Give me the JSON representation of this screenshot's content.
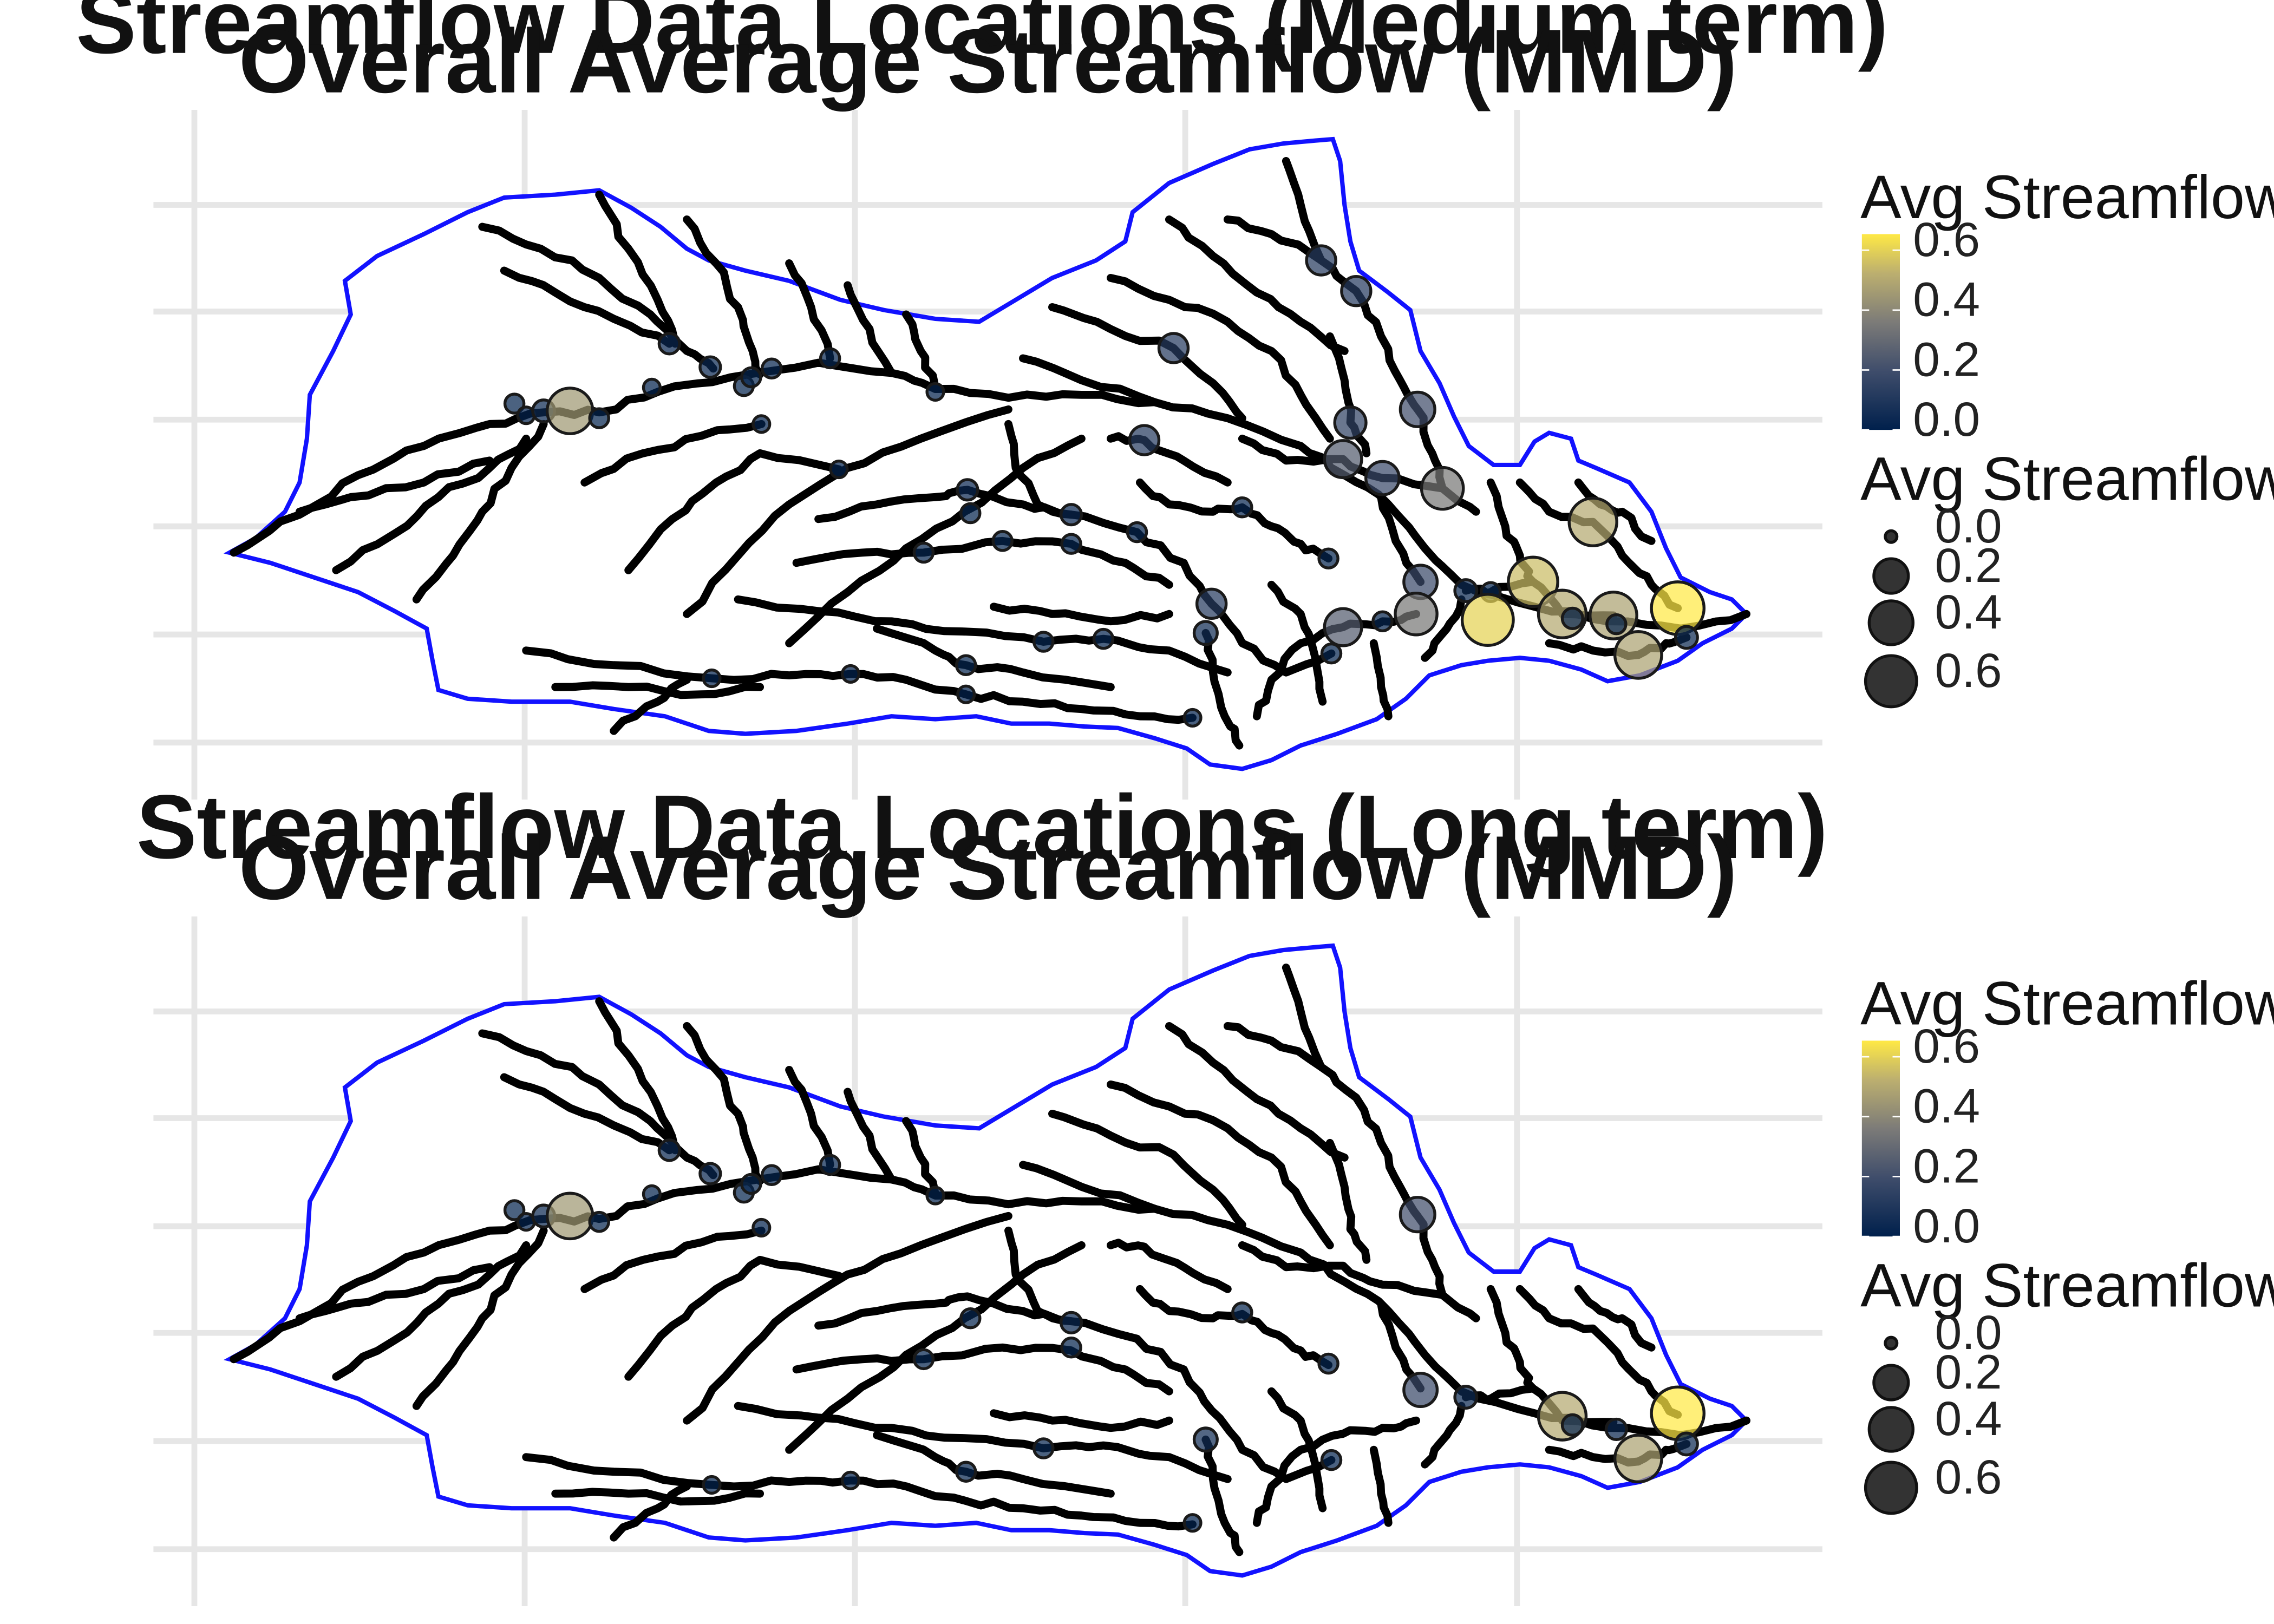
{
  "panels": [
    {
      "id": "medium",
      "title_line1": "Streamflow Data Locations (Medium term)",
      "title_line2": "Overall Average Streamflow (MMD)",
      "legend_color_title": "Avg Streamflow (_MMD)",
      "legend_color_ticks": [
        "0.0",
        "0.2",
        "0.4",
        "0.6"
      ],
      "legend_size_title": "Avg Streamflow (_MMD)",
      "legend_size_ticks": [
        "0.0",
        "0.2",
        "0.4",
        "0.6"
      ],
      "stations": [
        [
          352,
          276,
          0.02
        ],
        [
          360,
          284,
          0.01
        ],
        [
          372,
          281,
          0.04
        ],
        [
          390,
          281,
          0.45
        ],
        [
          410,
          286,
          0.02
        ],
        [
          458,
          235,
          0.03
        ],
        [
          446,
          265,
          0.01
        ],
        [
          486,
          251,
          0.03
        ],
        [
          509,
          264,
          0.02
        ],
        [
          514,
          258,
          0.02
        ],
        [
          528,
          252,
          0.02
        ],
        [
          521,
          290,
          0.01
        ],
        [
          568,
          245,
          0.02
        ],
        [
          574,
          321,
          0.01
        ],
        [
          640,
          268,
          0.01
        ],
        [
          904,
          178,
          0.12
        ],
        [
          928,
          199,
          0.12
        ],
        [
          803,
          238,
          0.12
        ],
        [
          970,
          280,
          0.2
        ],
        [
          924,
          289,
          0.15
        ],
        [
          783,
          301,
          0.12
        ],
        [
          919,
          314,
          0.25
        ],
        [
          946,
          327,
          0.18
        ],
        [
          987,
          334,
          0.35
        ],
        [
          662,
          335,
          0.03
        ],
        [
          664,
          351,
          0.02
        ],
        [
          733,
          352,
          0.03
        ],
        [
          850,
          347,
          0.02
        ],
        [
          778,
          364,
          0.02
        ],
        [
          733,
          372,
          0.02
        ],
        [
          686,
          370,
          0.02
        ],
        [
          632,
          378,
          0.02
        ],
        [
          909,
          382,
          0.02
        ],
        [
          1090,
          357,
          0.5
        ],
        [
          972,
          398,
          0.18
        ],
        [
          1003,
          404,
          0.04
        ],
        [
          1020,
          405,
          0.02
        ],
        [
          1049,
          398,
          0.55
        ],
        [
          1069,
          420,
          0.5
        ],
        [
          1076,
          423,
          0.03
        ],
        [
          1148,
          416,
          0.65
        ],
        [
          1104,
          421,
          0.48
        ],
        [
          1106,
          427,
          0.02
        ],
        [
          1018,
          424,
          0.6
        ],
        [
          969,
          420,
          0.35
        ],
        [
          829,
          413,
          0.12
        ],
        [
          919,
          429,
          0.25
        ],
        [
          946,
          425,
          0.02
        ],
        [
          825,
          433,
          0.05
        ],
        [
          755,
          437,
          0.02
        ],
        [
          714,
          439,
          0.02
        ],
        [
          1154,
          436,
          0.04
        ],
        [
          911,
          447,
          0.02
        ],
        [
          1121,
          448,
          0.48
        ],
        [
          661,
          455,
          0.02
        ],
        [
          487,
          464,
          0.01
        ],
        [
          582,
          461,
          0.01
        ],
        [
          661,
          475,
          0.01
        ],
        [
          816,
          491,
          0.01
        ]
      ]
    },
    {
      "id": "long",
      "title_line1": "Streamflow Data Locations (Long term)",
      "title_line2": "Overall Average Streamflow (MMD)",
      "legend_color_title": "Avg Streamflow (_MMD)",
      "legend_color_ticks": [
        "0.0",
        "0.2",
        "0.4",
        "0.6"
      ],
      "legend_size_title": "Avg Streamflow (_MMD)",
      "legend_size_ticks": [
        "0.0",
        "0.2",
        "0.4",
        "0.6"
      ],
      "stations": [
        [
          352,
          828,
          0.02
        ],
        [
          360,
          836,
          0.01
        ],
        [
          372,
          832,
          0.04
        ],
        [
          390,
          832,
          0.45
        ],
        [
          410,
          836,
          0.02
        ],
        [
          458,
          787,
          0.03
        ],
        [
          446,
          817,
          0.01
        ],
        [
          486,
          803,
          0.03
        ],
        [
          509,
          816,
          0.02
        ],
        [
          514,
          810,
          0.02
        ],
        [
          528,
          804,
          0.02
        ],
        [
          521,
          840,
          0.01
        ],
        [
          568,
          797,
          0.02
        ],
        [
          640,
          818,
          0.01
        ],
        [
          970,
          831,
          0.2
        ],
        [
          664,
          902,
          0.02
        ],
        [
          733,
          905,
          0.03
        ],
        [
          850,
          898,
          0.02
        ],
        [
          733,
          922,
          0.02
        ],
        [
          632,
          930,
          0.02
        ],
        [
          909,
          933,
          0.02
        ],
        [
          972,
          951,
          0.18
        ],
        [
          1003,
          956,
          0.04
        ],
        [
          1069,
          969,
          0.5
        ],
        [
          1076,
          975,
          0.03
        ],
        [
          1106,
          978,
          0.03
        ],
        [
          1148,
          967,
          0.65
        ],
        [
          1154,
          988,
          0.04
        ],
        [
          1121,
          998,
          0.48
        ],
        [
          825,
          985,
          0.05
        ],
        [
          714,
          991,
          0.02
        ],
        [
          911,
          999,
          0.02
        ],
        [
          661,
          1007,
          0.02
        ],
        [
          487,
          1016,
          0.01
        ],
        [
          582,
          1013,
          0.01
        ],
        [
          816,
          1042,
          0.01
        ]
      ]
    }
  ]
}
